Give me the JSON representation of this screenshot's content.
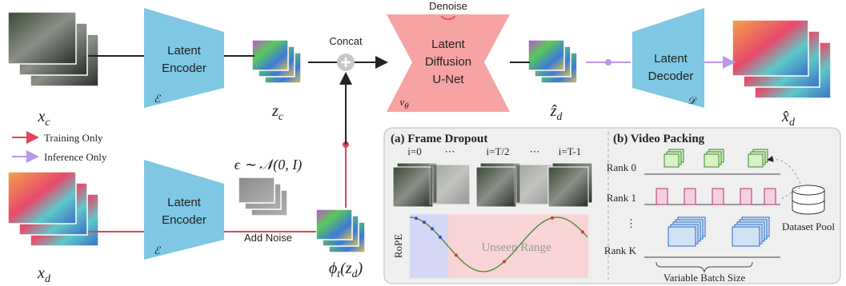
{
  "encoders": [
    {
      "label": [
        "Latent",
        "Encoder"
      ],
      "symbol": "ℰ"
    },
    {
      "label": [
        "Latent",
        "Encoder"
      ],
      "symbol": "ℰ"
    }
  ],
  "unet": {
    "label": [
      "Latent",
      "Diffusion",
      "U-Net"
    ],
    "symbol": {
      "base": "v",
      "sub": "θ"
    },
    "note": "Denoise"
  },
  "decoder": {
    "label": [
      "Latent",
      "Decoder"
    ],
    "symbol": "𝒟"
  },
  "variables": {
    "x_c": {
      "base": "x",
      "sub": "c"
    },
    "z_c": {
      "base": "z",
      "sub": "c"
    },
    "z_d_hat": {
      "base": "ẑ",
      "sub": "d"
    },
    "x_d_hat": {
      "base": "x̂",
      "sub": "d"
    },
    "x_d": {
      "base": "x",
      "sub": "d"
    },
    "phi": {
      "base": "ϕ",
      "sub": "t",
      "rest": "(z",
      "sub2": "d",
      "end": ")"
    }
  },
  "operations": {
    "concat": "Concat",
    "add_noise": "Add Noise",
    "noise": "ϵ ∼ 𝒩(0, I)"
  },
  "legend": [
    {
      "label": "Training Only",
      "color": "#e0455a"
    },
    {
      "label": "Inference Only",
      "color": "#b99ae8"
    }
  ],
  "frame_dropout": {
    "title": "(a) Frame Dropout",
    "frame_labels": [
      "i=0",
      "⋯",
      "i=T/2",
      "⋯",
      "i=T-1"
    ],
    "axis_label": "RoPE",
    "region_label": "Unseen Range"
  },
  "video_packing": {
    "title": "(b) Video Packing",
    "ranks": [
      "Rank 0",
      "Rank 1",
      "⋮",
      "Rank K"
    ],
    "pool": "Dataset Pool",
    "brace_label": "Variable Batch Size"
  }
}
